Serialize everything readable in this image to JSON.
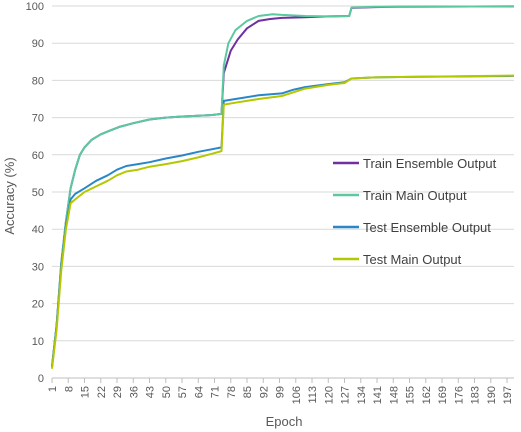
{
  "chart_data": {
    "type": "line",
    "title": "",
    "xlabel": "Epoch",
    "ylabel": "Accuracy (%)",
    "xlim": [
      1,
      200
    ],
    "ylim": [
      0,
      100
    ],
    "yticks": [
      0,
      10,
      20,
      30,
      40,
      50,
      60,
      70,
      80,
      90,
      100
    ],
    "xtick_labels": [
      1,
      8,
      15,
      22,
      29,
      36,
      43,
      50,
      57,
      64,
      71,
      78,
      85,
      92,
      99,
      106,
      113,
      120,
      127,
      134,
      141,
      148,
      155,
      162,
      169,
      176,
      183,
      190,
      197
    ],
    "grid": "horizontal",
    "legend_position": "right",
    "series": [
      {
        "name": "Train Ensemble Output",
        "color": "#7030a0",
        "points": [
          [
            1,
            3
          ],
          [
            3,
            14
          ],
          [
            5,
            31
          ],
          [
            7,
            42
          ],
          [
            9,
            51
          ],
          [
            11,
            56
          ],
          [
            13,
            60
          ],
          [
            15,
            62
          ],
          [
            18,
            64
          ],
          [
            22,
            65.5
          ],
          [
            26,
            66.5
          ],
          [
            30,
            67.5
          ],
          [
            36,
            68.5
          ],
          [
            43,
            69.5
          ],
          [
            50,
            70
          ],
          [
            57,
            70.3
          ],
          [
            64,
            70.5
          ],
          [
            70,
            70.7
          ],
          [
            74,
            71
          ],
          [
            75,
            82
          ],
          [
            78,
            88
          ],
          [
            81,
            91
          ],
          [
            85,
            94
          ],
          [
            90,
            96
          ],
          [
            95,
            96.5
          ],
          [
            100,
            96.8
          ],
          [
            110,
            97
          ],
          [
            120,
            97.2
          ],
          [
            129,
            97.3
          ],
          [
            130,
            99.5
          ],
          [
            140,
            99.7
          ],
          [
            150,
            99.8
          ],
          [
            200,
            99.9
          ]
        ]
      },
      {
        "name": "Train Main Output",
        "color": "#5cc8a0",
        "points": [
          [
            1,
            3
          ],
          [
            3,
            14
          ],
          [
            5,
            31
          ],
          [
            7,
            42
          ],
          [
            9,
            51
          ],
          [
            11,
            56
          ],
          [
            13,
            60
          ],
          [
            15,
            62
          ],
          [
            18,
            64
          ],
          [
            22,
            65.5
          ],
          [
            26,
            66.5
          ],
          [
            30,
            67.5
          ],
          [
            36,
            68.5
          ],
          [
            43,
            69.5
          ],
          [
            50,
            70
          ],
          [
            57,
            70.3
          ],
          [
            64,
            70.5
          ],
          [
            70,
            70.7
          ],
          [
            74,
            71
          ],
          [
            75,
            84
          ],
          [
            77,
            90
          ],
          [
            80,
            93.5
          ],
          [
            85,
            96
          ],
          [
            90,
            97.3
          ],
          [
            96,
            97.8
          ],
          [
            100,
            97.6
          ],
          [
            110,
            97.3
          ],
          [
            120,
            97.2
          ],
          [
            129,
            97.3
          ],
          [
            130,
            99.6
          ],
          [
            140,
            99.8
          ],
          [
            150,
            99.8
          ],
          [
            200,
            99.9
          ]
        ]
      },
      {
        "name": "Test Ensemble Output",
        "color": "#2a86c8",
        "points": [
          [
            1,
            3
          ],
          [
            3,
            14
          ],
          [
            5,
            30
          ],
          [
            7,
            41
          ],
          [
            9,
            48
          ],
          [
            11,
            49.5
          ],
          [
            15,
            51
          ],
          [
            20,
            53
          ],
          [
            25,
            54.5
          ],
          [
            29,
            56
          ],
          [
            33,
            57
          ],
          [
            38,
            57.5
          ],
          [
            43,
            58
          ],
          [
            50,
            59
          ],
          [
            57,
            59.8
          ],
          [
            64,
            60.8
          ],
          [
            70,
            61.5
          ],
          [
            74,
            62
          ],
          [
            75,
            74.5
          ],
          [
            80,
            75
          ],
          [
            90,
            76
          ],
          [
            100,
            76.5
          ],
          [
            105,
            77.5
          ],
          [
            110,
            78.2
          ],
          [
            120,
            79
          ],
          [
            127,
            79.5
          ],
          [
            130,
            80.5
          ],
          [
            140,
            80.8
          ],
          [
            160,
            81
          ],
          [
            200,
            81.2
          ]
        ]
      },
      {
        "name": "Test Main Output",
        "color": "#b4c800",
        "points": [
          [
            1,
            2.5
          ],
          [
            3,
            13
          ],
          [
            5,
            29
          ],
          [
            7,
            40
          ],
          [
            9,
            47
          ],
          [
            11,
            48
          ],
          [
            15,
            50
          ],
          [
            20,
            51.5
          ],
          [
            25,
            53
          ],
          [
            29,
            54.5
          ],
          [
            33,
            55.5
          ],
          [
            38,
            56
          ],
          [
            43,
            56.8
          ],
          [
            50,
            57.5
          ],
          [
            57,
            58.3
          ],
          [
            64,
            59.3
          ],
          [
            70,
            60.3
          ],
          [
            74,
            61
          ],
          [
            75,
            73.5
          ],
          [
            80,
            74
          ],
          [
            90,
            75
          ],
          [
            100,
            75.8
          ],
          [
            105,
            76.8
          ],
          [
            110,
            77.8
          ],
          [
            120,
            78.8
          ],
          [
            127,
            79.3
          ],
          [
            130,
            80.5
          ],
          [
            140,
            80.8
          ],
          [
            160,
            81
          ],
          [
            200,
            81.3
          ]
        ]
      }
    ]
  }
}
